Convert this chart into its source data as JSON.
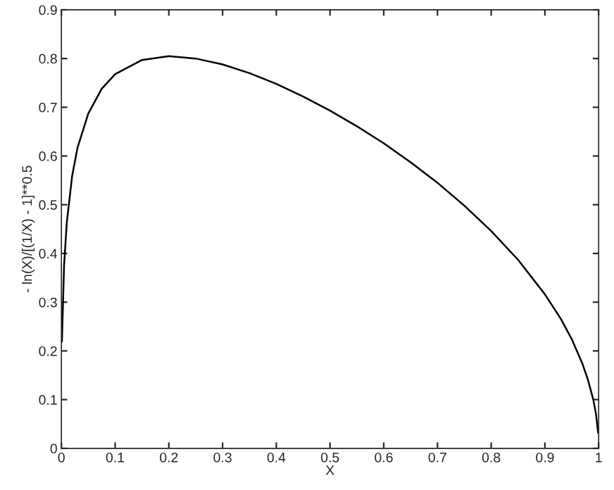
{
  "chart_data": {
    "type": "line",
    "xlabel": "X",
    "ylabel": "- ln(X)/[(1/X) - 1]**0.5",
    "x": [
      0.001,
      0.005,
      0.01,
      0.02,
      0.03,
      0.05,
      0.075,
      0.1,
      0.15,
      0.2,
      0.25,
      0.3,
      0.35,
      0.4,
      0.45,
      0.5,
      0.55,
      0.6,
      0.65,
      0.7,
      0.75,
      0.8,
      0.85,
      0.9,
      0.93,
      0.95,
      0.97,
      0.98,
      0.99,
      0.995,
      0.999
    ],
    "series": [
      {
        "color": "#000000",
        "values": [
          0.219,
          0.376,
          0.463,
          0.559,
          0.617,
          0.687,
          0.738,
          0.768,
          0.797,
          0.805,
          0.8,
          0.788,
          0.77,
          0.748,
          0.722,
          0.693,
          0.661,
          0.626,
          0.587,
          0.545,
          0.498,
          0.446,
          0.387,
          0.316,
          0.265,
          0.224,
          0.173,
          0.141,
          0.1,
          0.071,
          0.032
        ]
      }
    ],
    "xlim": [
      0,
      1
    ],
    "ylim": [
      0,
      0.9
    ],
    "xticks": [
      0,
      0.1,
      0.2,
      0.3,
      0.4,
      0.5,
      0.6,
      0.7,
      0.8,
      0.9,
      1
    ],
    "yticks": [
      0,
      0.1,
      0.2,
      0.3,
      0.4,
      0.5,
      0.6,
      0.7,
      0.8,
      0.9
    ],
    "grid": false,
    "legend": false,
    "marker": "none",
    "line_style": "solid"
  }
}
